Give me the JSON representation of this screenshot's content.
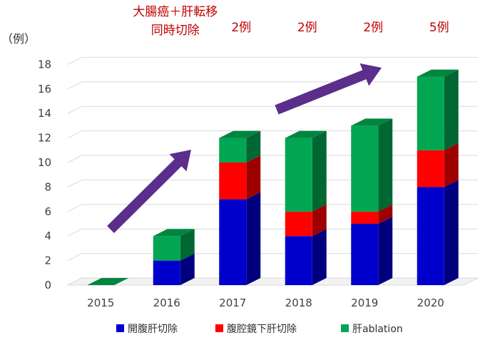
{
  "chart_data": {
    "type": "bar",
    "stacked": true,
    "three_d": true,
    "unit_label": "（例）",
    "categories": [
      "2015",
      "2016",
      "2017",
      "2018",
      "2019",
      "2020"
    ],
    "series": [
      {
        "name": "開腹肝切除",
        "color": "#0000cc",
        "values": [
          0,
          2,
          7,
          4,
          5,
          8
        ]
      },
      {
        "name": "腹腔鏡下肝切除",
        "color": "#ff0000",
        "values": [
          0,
          0,
          3,
          2,
          1,
          3
        ]
      },
      {
        "name": "肝ablation",
        "color": "#00a651",
        "values": [
          0,
          2,
          2,
          6,
          7,
          6
        ]
      }
    ],
    "ylim": [
      0,
      18
    ],
    "yticks": [
      0,
      2,
      4,
      6,
      8,
      10,
      12,
      14,
      16,
      18
    ],
    "grid": true,
    "legend_position": "bottom",
    "annotations": [
      {
        "category": "2016",
        "lines": [
          "大腸癌＋肝転移",
          "同時切除"
        ],
        "color": "#c00000"
      },
      {
        "category": "2017",
        "lines": [
          "2例"
        ],
        "color": "#c00000"
      },
      {
        "category": "2018",
        "lines": [
          "2例"
        ],
        "color": "#c00000"
      },
      {
        "category": "2019",
        "lines": [
          "2例"
        ],
        "color": "#c00000"
      },
      {
        "category": "2020",
        "lines": [
          "5例"
        ],
        "color": "#c00000"
      }
    ],
    "arrow_color": "#5b2e8c"
  }
}
